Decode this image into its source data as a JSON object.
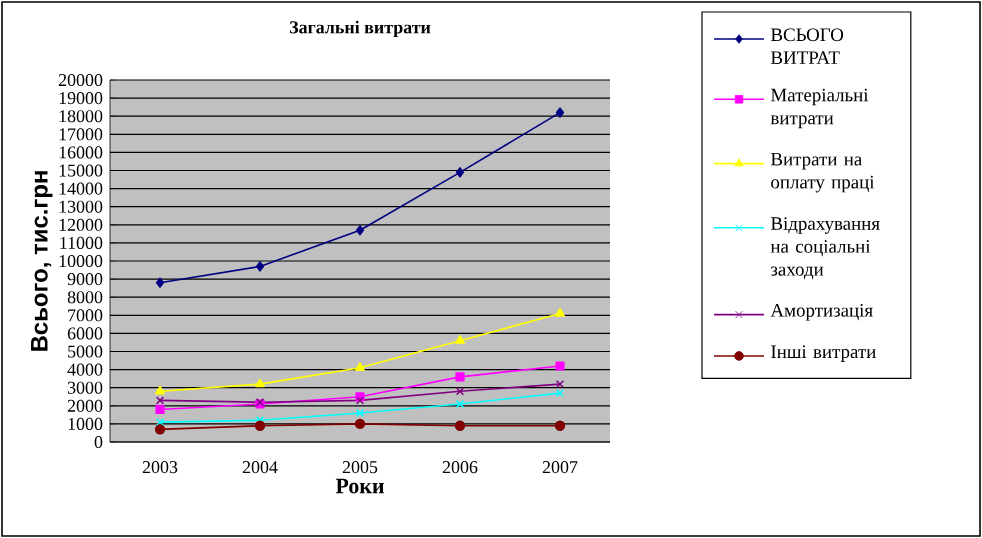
{
  "chart_data": {
    "type": "line",
    "title": "Загальні витрати",
    "xlabel": "Роки",
    "ylabel": "Всього, тис.грн",
    "categories": [
      "2003",
      "2004",
      "2005",
      "2006",
      "2007"
    ],
    "ylim": [
      0,
      20000
    ],
    "yticks": [
      0,
      1000,
      2000,
      3000,
      4000,
      5000,
      6000,
      7000,
      8000,
      9000,
      10000,
      11000,
      12000,
      13000,
      14000,
      15000,
      16000,
      17000,
      18000,
      19000,
      20000
    ],
    "grid": "y",
    "legend": "right",
    "series": [
      {
        "name": "ВСЬОГО ВИТРАТ",
        "color": "#000080",
        "marker": "diamond",
        "values": [
          8800,
          9700,
          11700,
          14900,
          18200
        ]
      },
      {
        "name": "Матеріальні витрати",
        "color": "#ff00ff",
        "marker": "square",
        "values": [
          1800,
          2100,
          2500,
          3600,
          4200
        ]
      },
      {
        "name": "Витрати на оплату праці",
        "color": "#ffff00",
        "marker": "triangle",
        "values": [
          2800,
          3200,
          4100,
          5600,
          7100
        ]
      },
      {
        "name": "Відрахування на соціальні заходи",
        "color": "#00ffff",
        "marker": "cross",
        "values": [
          1100,
          1200,
          1600,
          2100,
          2700
        ]
      },
      {
        "name": "Амортизація",
        "color": "#800080",
        "marker": "cross",
        "values": [
          2300,
          2200,
          2300,
          2800,
          3200
        ]
      },
      {
        "name": "Інші витрати",
        "color": "#800000",
        "marker": "circle",
        "values": [
          700,
          900,
          1000,
          900,
          900
        ]
      }
    ]
  }
}
